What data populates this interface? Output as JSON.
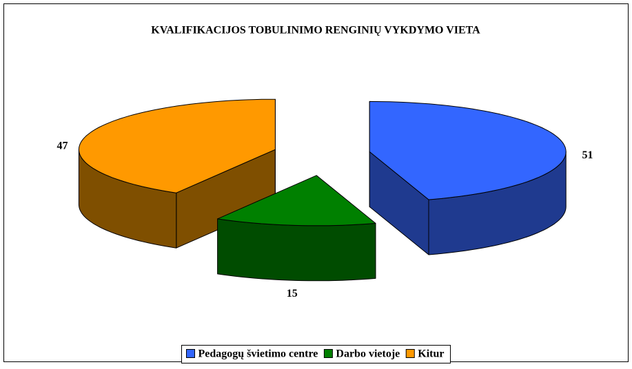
{
  "chart_data": {
    "type": "pie3d",
    "title": "KVALIFIKACIJOS TOBULINIMO RENGINIŲ VYKDYMO VIETA",
    "categories": [
      "Pedagogų švietimo centre",
      "Darbo vietoje",
      "Kitur"
    ],
    "values": [
      51,
      15,
      47
    ],
    "colors": [
      "#3366ff",
      "#008000",
      "#ff9900"
    ],
    "side_colors": [
      "#1f3a8f",
      "#004c00",
      "#7f4f00"
    ],
    "legend": "bottom"
  }
}
